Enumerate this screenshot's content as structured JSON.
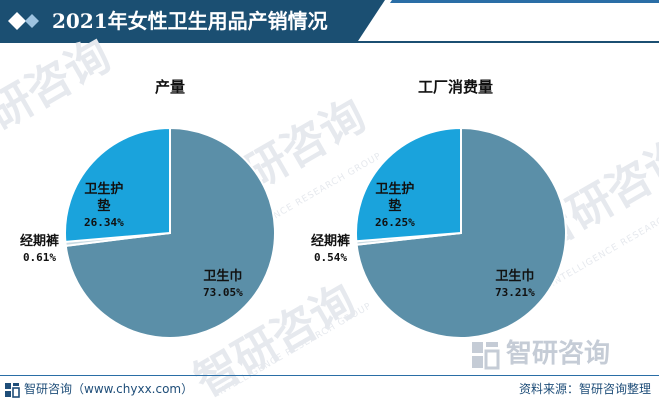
{
  "header": {
    "title": "2021年女性卫生用品产销情况",
    "colors": {
      "primary": "#1b4f72",
      "accent": "#2a6ea6"
    }
  },
  "watermark": {
    "text": "智研咨询",
    "sub": "INTELLIGENCE RESEARCH GROUP"
  },
  "footer": {
    "left_text": "智研咨询（www.chyxx.com）",
    "right_text": "资料来源：智研咨询整理",
    "logo_icon": "zhiyan-logo-icon"
  },
  "chart_data": [
    {
      "type": "pie",
      "title": "产量",
      "slices": [
        {
          "label": "卫生巾",
          "value": 73.05,
          "display": "73.05%",
          "color": "#5b8fa8"
        },
        {
          "label": "经期裤",
          "value": 0.61,
          "display": "0.61%",
          "color": "#c9dbe3"
        },
        {
          "label": "卫生护垫",
          "label_lines": [
            "卫生护",
            "垫"
          ],
          "value": 26.34,
          "display": "26.34%",
          "color": "#1aa3dc"
        }
      ]
    },
    {
      "type": "pie",
      "title": "工厂消费量",
      "slices": [
        {
          "label": "卫生巾",
          "value": 73.21,
          "display": "73.21%",
          "color": "#5b8fa8"
        },
        {
          "label": "经期裤",
          "value": 0.54,
          "display": "0.54%",
          "color": "#c9dbe3"
        },
        {
          "label": "卫生护垫",
          "label_lines": [
            "卫生护",
            "垫"
          ],
          "value": 26.25,
          "display": "26.25%",
          "color": "#1aa3dc"
        }
      ]
    }
  ]
}
